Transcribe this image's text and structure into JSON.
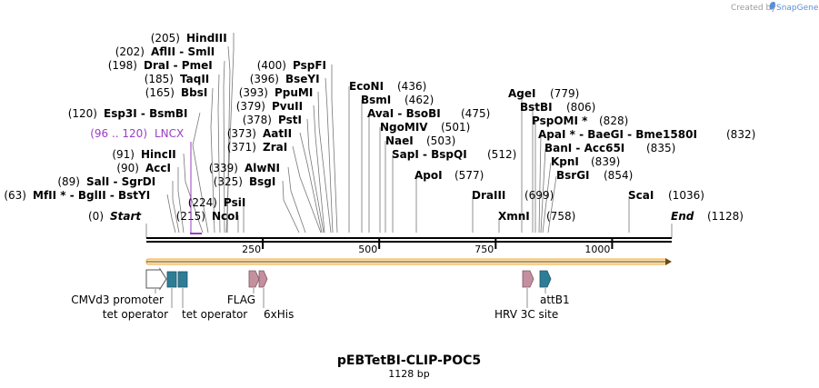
{
  "brand": {
    "prefix": "Created by",
    "name": "SnapGene"
  },
  "map": {
    "name": "pEBTetBI-CLIP-POC5",
    "length_label": "1128 bp",
    "length": 1128,
    "start_label": "Start",
    "end_label": "End",
    "start_pos": "(0)",
    "end_pos": "(1128)",
    "ticks": [
      "250",
      "500",
      "750",
      "1000"
    ],
    "tick_values": [
      250,
      500,
      750,
      1000
    ]
  },
  "sites": [
    {
      "pos": "(205)",
      "text": "HindIII"
    },
    {
      "pos": "(202)",
      "text": "AflII  - SmlI"
    },
    {
      "pos": "(198)",
      "text": "DraI  - PmeI"
    },
    {
      "pos": "(185)",
      "text": "TaqII"
    },
    {
      "pos": "(165)",
      "text": "BbsI"
    },
    {
      "pos": "(120)",
      "text": "Esp3I  - BsmBI"
    },
    {
      "pos": "(91)",
      "text": "HincII"
    },
    {
      "pos": "(90)",
      "text": "AccI"
    },
    {
      "pos": "(89)",
      "text": "SalI  - SgrDI"
    },
    {
      "pos": "(63)",
      "text": "MfII * - BglII  - BstYI"
    },
    {
      "pos": "(400)",
      "text": "PspFI"
    },
    {
      "pos": "(396)",
      "text": "BseYI"
    },
    {
      "pos": "(393)",
      "text": "PpuMI"
    },
    {
      "pos": "(379)",
      "text": "PvuII"
    },
    {
      "pos": "(378)",
      "text": "PstI"
    },
    {
      "pos": "(373)",
      "text": "AatII"
    },
    {
      "pos": "(371)",
      "text": "ZraI"
    },
    {
      "pos": "(339)",
      "text": "AlwNI"
    },
    {
      "pos": "(325)",
      "text": "BsgI"
    },
    {
      "pos": "(224)",
      "text": "PsiI"
    },
    {
      "pos": "(215)",
      "text": "NcoI"
    },
    {
      "pos": "(436)",
      "text": "EcoNI"
    },
    {
      "pos": "(462)",
      "text": "BsmI"
    },
    {
      "pos": "(475)",
      "text": "AvaI  - BsoBI"
    },
    {
      "pos": "(501)",
      "text": "NgoMIV"
    },
    {
      "pos": "(503)",
      "text": "NaeI"
    },
    {
      "pos": "(512)",
      "text": "SapI  - BspQI"
    },
    {
      "pos": "(577)",
      "text": "ApoI"
    },
    {
      "pos": "(699)",
      "text": "DraIII"
    },
    {
      "pos": "(758)",
      "text": "XmnI"
    },
    {
      "pos": "(779)",
      "text": "AgeI"
    },
    {
      "pos": "(806)",
      "text": "BstBI"
    },
    {
      "pos": "(828)",
      "text": "PspOMI *"
    },
    {
      "pos": "(832)",
      "text": "ApaI * - BaeGI  - Bme1580I"
    },
    {
      "pos": "(835)",
      "text": "BanI  - Acc65I"
    },
    {
      "pos": "(839)",
      "text": "KpnI"
    },
    {
      "pos": "(854)",
      "text": "BsrGI"
    },
    {
      "pos": "(1036)",
      "text": "ScaI"
    }
  ],
  "orf": {
    "range": "(96 .. 120)",
    "name": "LNCX"
  },
  "features": [
    {
      "name": "CMVd3 promoter"
    },
    {
      "name": "tet operator"
    },
    {
      "name": "tet operator"
    },
    {
      "name": "FLAG"
    },
    {
      "name": "6xHis"
    },
    {
      "name": "HRV 3C site"
    },
    {
      "name": "attB1"
    }
  ],
  "colors": {
    "purple": "#9b3cc4",
    "teal": "#2e7d96",
    "mauve": "#c4909f",
    "orange": "#f2a93b",
    "backbone": "#000000"
  }
}
